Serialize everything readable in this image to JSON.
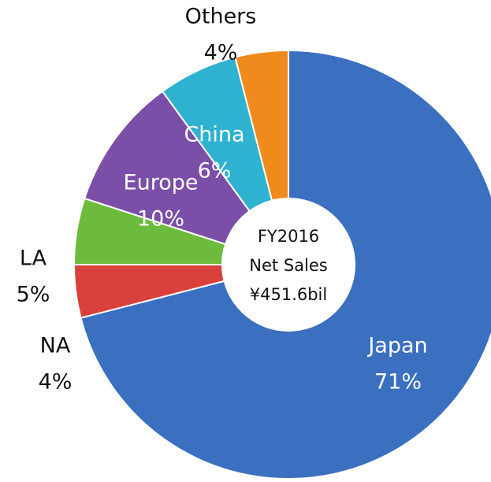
{
  "chart_data": {
    "type": "donut",
    "categories": [
      "Japan",
      "NA",
      "LA",
      "Europe",
      "China",
      "Others"
    ],
    "values": [
      71,
      4,
      5,
      10,
      6,
      4
    ],
    "value_labels": [
      "71%",
      "4%",
      "5%",
      "10%",
      "6%",
      "4%"
    ],
    "colors": [
      "#3b6fc0",
      "#d9403c",
      "#6dbb3c",
      "#7b4fa8",
      "#2fb2cf",
      "#f08a1d"
    ],
    "center_label": [
      "FY2016",
      "Net Sales",
      "¥451.6bil"
    ]
  }
}
